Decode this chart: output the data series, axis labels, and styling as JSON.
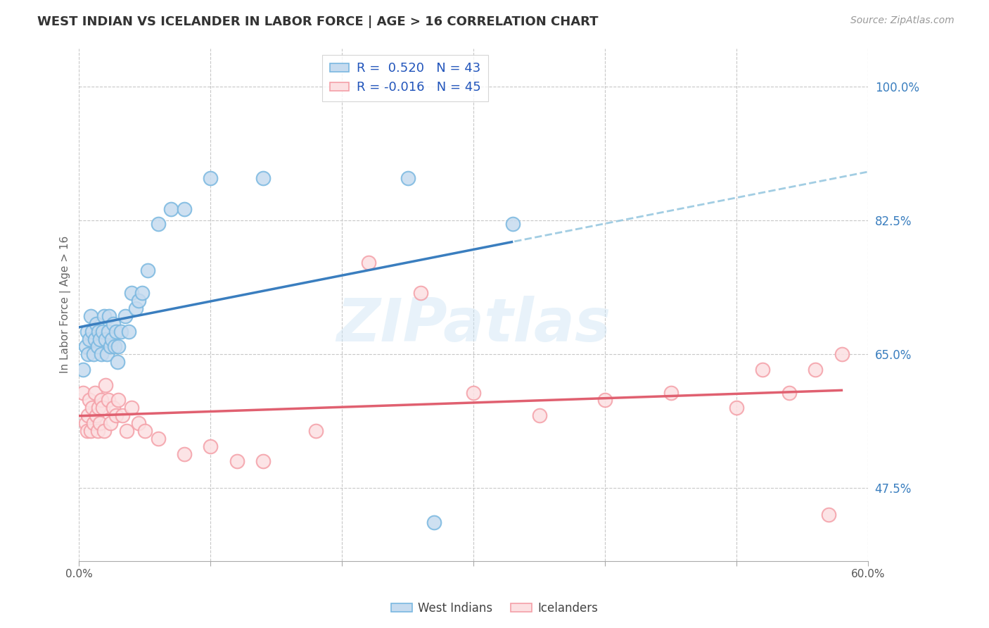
{
  "title": "WEST INDIAN VS ICELANDER IN LABOR FORCE | AGE > 16 CORRELATION CHART",
  "source": "Source: ZipAtlas.com",
  "ylabel": "In Labor Force | Age > 16",
  "watermark": "ZIPatlas",
  "xlim": [
    0.0,
    0.6
  ],
  "ylim": [
    0.38,
    1.05
  ],
  "xtick_pos": [
    0.0,
    0.1,
    0.2,
    0.3,
    0.4,
    0.5,
    0.6
  ],
  "xticklabels": [
    "0.0%",
    "",
    "",
    "",
    "",
    "",
    "60.0%"
  ],
  "ytick_positions": [
    0.475,
    0.65,
    0.825,
    1.0
  ],
  "ytick_labels": [
    "47.5%",
    "65.0%",
    "82.5%",
    "100.0%"
  ],
  "R_west_indian": 0.52,
  "N_west_indian": 43,
  "R_icelander": -0.016,
  "N_icelander": 45,
  "blue_edge": "#7ab8e0",
  "blue_fill": "#c6dbef",
  "pink_edge": "#f4a0a8",
  "pink_fill": "#fce0e2",
  "trend_blue": "#3a7ebf",
  "trend_blue_dash": "#92c5de",
  "trend_pink": "#e06070",
  "grid_color": "#c8c8c8",
  "background_color": "#ffffff",
  "west_indian_x": [
    0.003,
    0.005,
    0.006,
    0.007,
    0.008,
    0.009,
    0.01,
    0.011,
    0.012,
    0.013,
    0.014,
    0.015,
    0.016,
    0.017,
    0.018,
    0.019,
    0.02,
    0.021,
    0.022,
    0.023,
    0.024,
    0.025,
    0.026,
    0.027,
    0.028,
    0.029,
    0.03,
    0.032,
    0.035,
    0.038,
    0.04,
    0.043,
    0.045,
    0.048,
    0.052,
    0.06,
    0.07,
    0.08,
    0.1,
    0.14,
    0.25,
    0.27,
    0.33
  ],
  "west_indian_y": [
    0.63,
    0.66,
    0.68,
    0.65,
    0.67,
    0.7,
    0.68,
    0.65,
    0.67,
    0.69,
    0.66,
    0.68,
    0.67,
    0.65,
    0.68,
    0.7,
    0.67,
    0.65,
    0.68,
    0.7,
    0.66,
    0.67,
    0.69,
    0.66,
    0.68,
    0.64,
    0.66,
    0.68,
    0.7,
    0.68,
    0.73,
    0.71,
    0.72,
    0.73,
    0.76,
    0.82,
    0.84,
    0.84,
    0.88,
    0.88,
    0.88,
    0.43,
    0.82
  ],
  "icelander_x": [
    0.003,
    0.005,
    0.006,
    0.007,
    0.008,
    0.009,
    0.01,
    0.011,
    0.012,
    0.013,
    0.014,
    0.015,
    0.016,
    0.017,
    0.018,
    0.019,
    0.02,
    0.022,
    0.024,
    0.026,
    0.028,
    0.03,
    0.033,
    0.036,
    0.04,
    0.045,
    0.05,
    0.06,
    0.08,
    0.1,
    0.12,
    0.14,
    0.18,
    0.22,
    0.26,
    0.3,
    0.35,
    0.4,
    0.45,
    0.5,
    0.52,
    0.54,
    0.56,
    0.57,
    0.58
  ],
  "icelander_y": [
    0.6,
    0.56,
    0.55,
    0.57,
    0.59,
    0.55,
    0.58,
    0.56,
    0.6,
    0.57,
    0.55,
    0.58,
    0.56,
    0.59,
    0.58,
    0.55,
    0.61,
    0.59,
    0.56,
    0.58,
    0.57,
    0.59,
    0.57,
    0.55,
    0.58,
    0.56,
    0.55,
    0.54,
    0.52,
    0.53,
    0.51,
    0.51,
    0.55,
    0.77,
    0.73,
    0.6,
    0.57,
    0.59,
    0.6,
    0.58,
    0.63,
    0.6,
    0.63,
    0.44,
    0.65
  ]
}
